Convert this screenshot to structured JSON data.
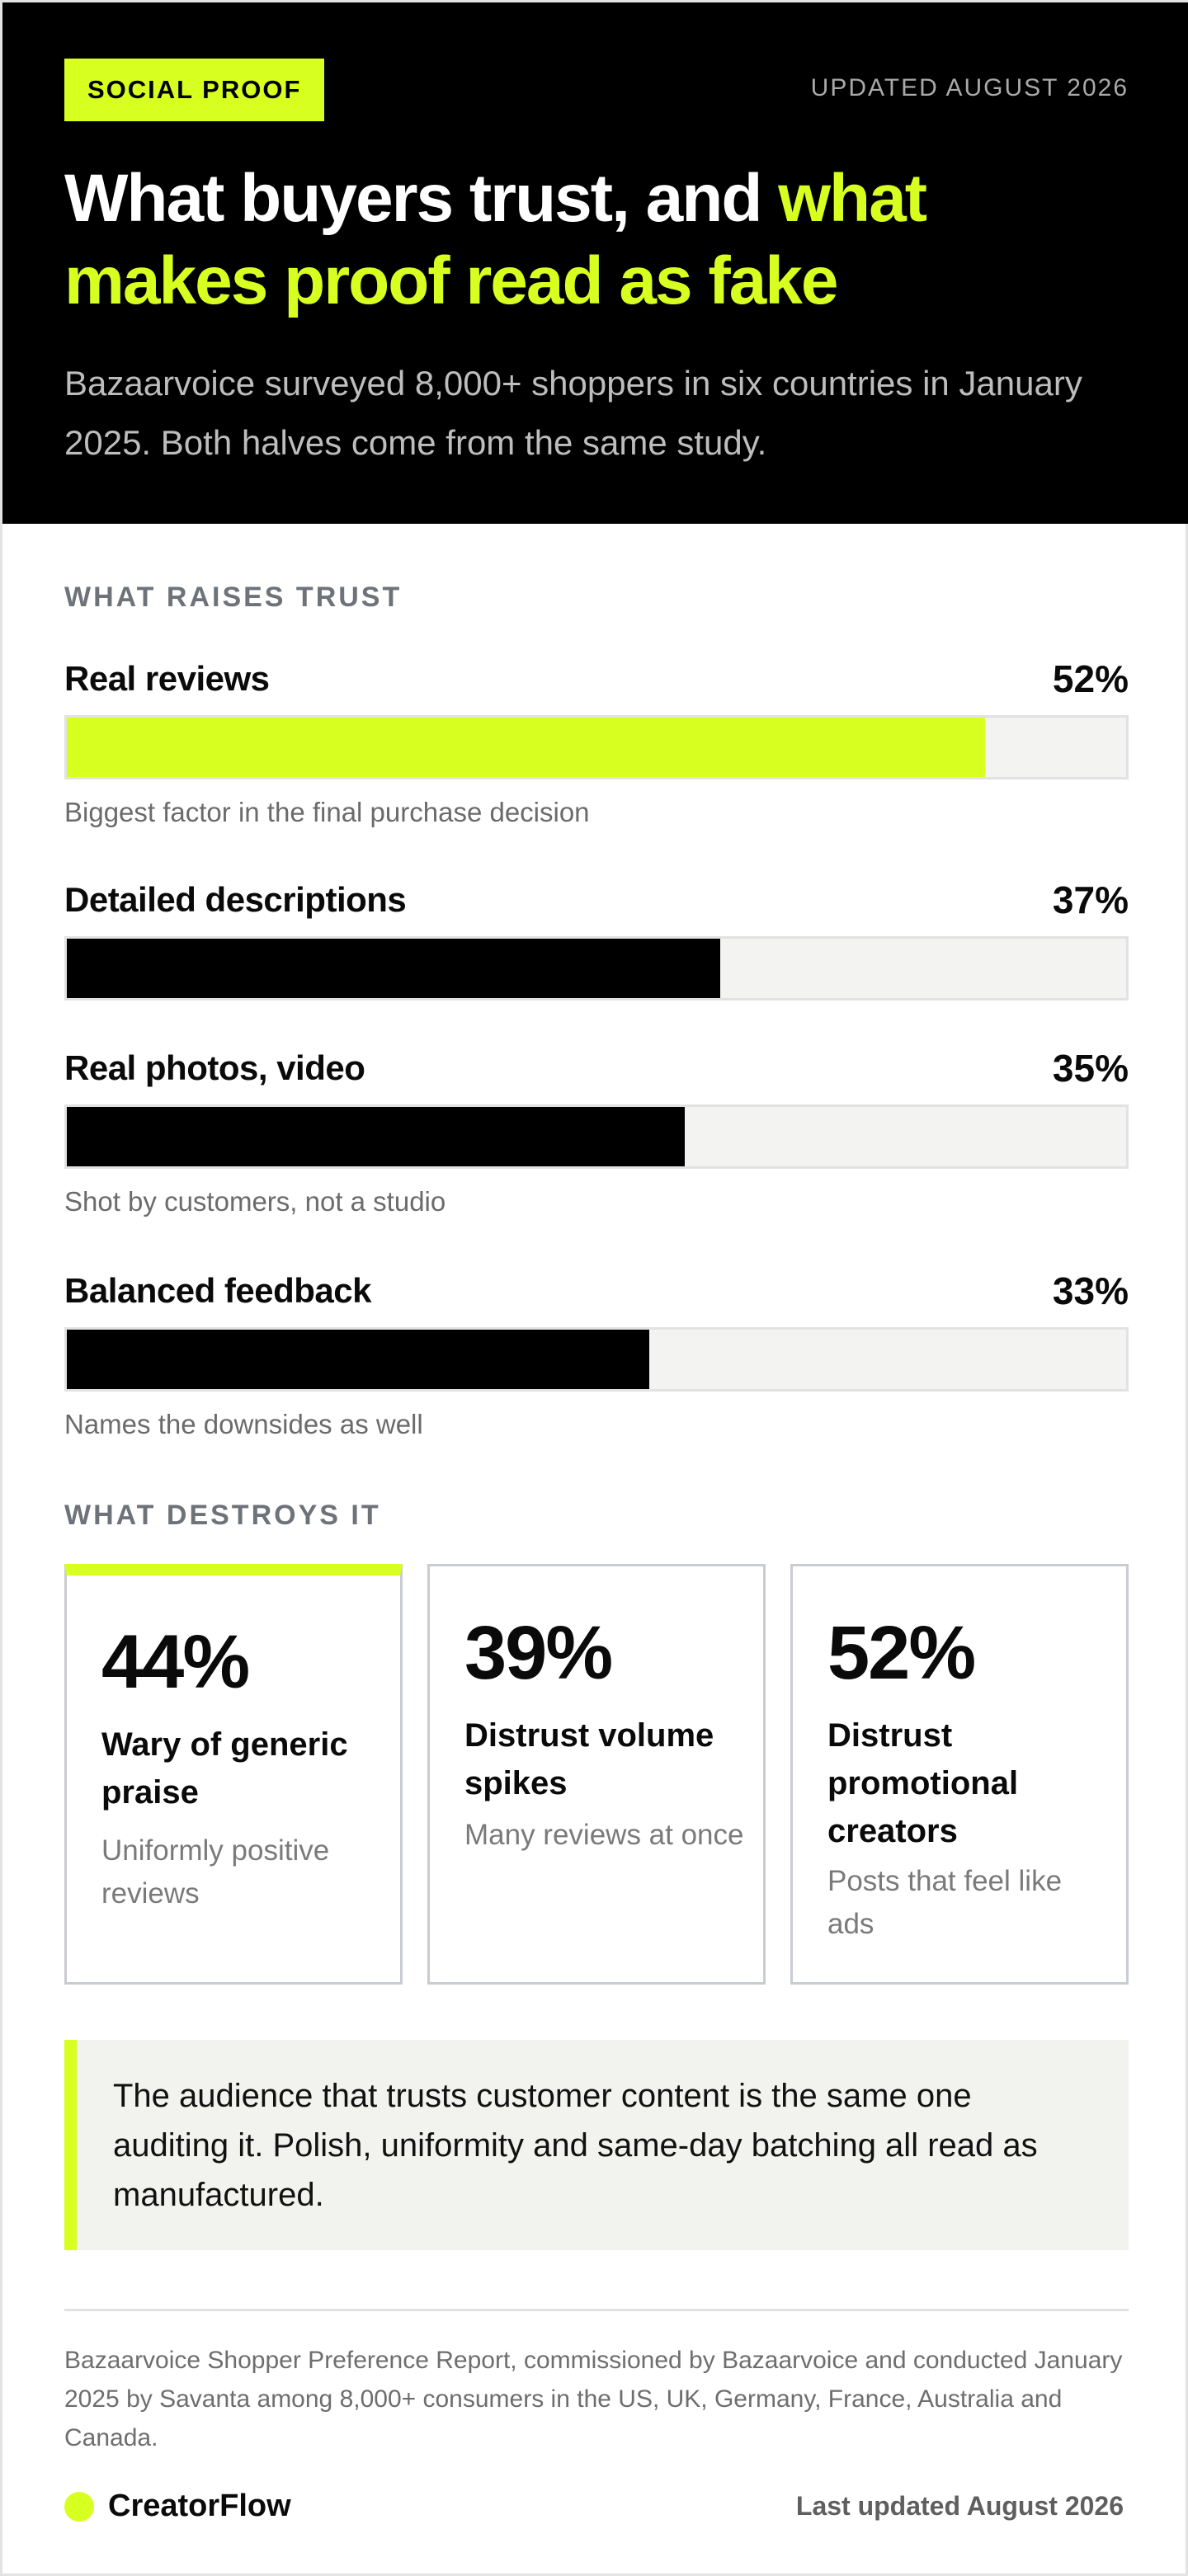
{
  "header": {
    "tag": "SOCIAL PROOF",
    "updated": "UPDATED AUGUST 2026",
    "headline_white": "What buyers trust, and ",
    "headline_accent": "what makes proof read as fake",
    "intro": "Bazaarvoice surveyed 8,000+ shoppers in six countries in January 2025. Both halves come from the same study."
  },
  "colors": {
    "accent": "#d7ff1f",
    "bar_dark": "#000000",
    "track": "#f3f4f1"
  },
  "sections": {
    "raises": "WHAT RAISES TRUST",
    "destroys": "WHAT DESTROYS IT"
  },
  "chart_data": {
    "type": "bar",
    "orientation": "horizontal",
    "title": "WHAT RAISES TRUST",
    "categories": [
      "Real reviews",
      "Detailed descriptions",
      "Real photos, video",
      "Balanced feedback"
    ],
    "values": [
      52,
      37,
      35,
      33
    ],
    "value_labels": [
      "52%",
      "37%",
      "35%",
      "33%"
    ],
    "notes": [
      "Biggest factor in the final purchase decision",
      "",
      "Shot by customers, not a studio",
      "Names the downsides as well"
    ],
    "bar_colors": [
      "#d7ff1f",
      "#000000",
      "#000000",
      "#000000"
    ],
    "xlim": [
      0,
      60
    ],
    "grid": false
  },
  "cards": [
    {
      "value": "44%",
      "title": "Wary of generic praise",
      "note": "Uniformly positive reviews"
    },
    {
      "value": "39%",
      "title": "Distrust volume spikes",
      "note": "Many reviews at once"
    },
    {
      "value": "52%",
      "title": "Distrust promotional creators",
      "note": "Posts that feel like ads"
    }
  ],
  "callout": "The audience that trusts customer content is the same one auditing it. Polish, uniformity and same-day batching all read as manufactured.",
  "footer": {
    "source": "Bazaarvoice Shopper Preference Report, commissioned by Bazaarvoice and conducted January 2025 by Savanta among 8,000+ consumers in the US, UK, Germany, France, Australia and Canada.",
    "brand": "CreatorFlow",
    "updated": "Last updated August 2026"
  }
}
